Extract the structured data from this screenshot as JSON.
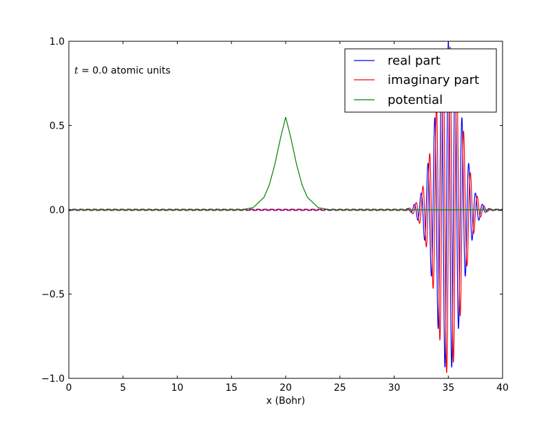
{
  "chart_data": {
    "type": "line",
    "title": "",
    "xlabel": "x (Bohr)",
    "ylabel": "",
    "xlim": [
      0,
      40
    ],
    "ylim": [
      -1.0,
      1.0
    ],
    "xticks": [
      0,
      5,
      10,
      15,
      20,
      25,
      30,
      35,
      40
    ],
    "yticks": [
      -1.0,
      -0.5,
      0.0,
      0.5,
      1.0
    ],
    "xtick_labels": [
      "0",
      "5",
      "10",
      "15",
      "20",
      "25",
      "30",
      "35",
      "40"
    ],
    "ytick_labels": [
      "−1.0",
      "−0.5",
      "0.0",
      "0.5",
      "1.0"
    ],
    "grid": false,
    "legend_position": "upper right",
    "annotation": {
      "var": "t",
      "text": " = 0.0 atomic units"
    },
    "series": [
      {
        "name": "real part",
        "color": "#0000ff",
        "description": "wave packet, Gaussian envelope centred at x = 35, width ~1.2 Bohr, wavenumber ~10 /Bohr",
        "x": [
          31.0,
          31.5,
          32.0,
          32.5,
          33.0,
          33.5,
          34.0,
          34.5,
          35.0,
          35.5,
          36.0,
          36.5,
          37.0,
          37.5,
          38.0,
          38.5,
          39.0
        ],
        "envelope": [
          0.004,
          0.012,
          0.04,
          0.1,
          0.23,
          0.42,
          0.68,
          0.9,
          1.0,
          0.9,
          0.68,
          0.42,
          0.23,
          0.1,
          0.04,
          0.012,
          0.004
        ]
      },
      {
        "name": "imaginary part",
        "color": "#ff0000",
        "description": "wave packet, same envelope as the real part, shifted by a quarter period",
        "x": [
          31.0,
          31.5,
          32.0,
          32.5,
          33.0,
          33.5,
          34.0,
          34.5,
          35.0,
          35.5,
          36.0,
          36.5,
          37.0,
          37.5,
          38.0,
          38.5,
          39.0
        ],
        "envelope": [
          0.004,
          0.012,
          0.04,
          0.1,
          0.23,
          0.42,
          0.68,
          0.9,
          1.0,
          0.9,
          0.68,
          0.42,
          0.23,
          0.1,
          0.04,
          0.012,
          0.004
        ]
      },
      {
        "name": "potential",
        "color": "#008000",
        "x": [
          0,
          15,
          16,
          17,
          18,
          18.5,
          19,
          19.5,
          20,
          20.5,
          21,
          21.5,
          22,
          23,
          24,
          25,
          40
        ],
        "y": [
          0.0,
          0.0,
          0.001,
          0.013,
          0.074,
          0.15,
          0.27,
          0.42,
          0.55,
          0.42,
          0.27,
          0.15,
          0.074,
          0.013,
          0.001,
          0.0,
          0.0
        ]
      }
    ]
  }
}
